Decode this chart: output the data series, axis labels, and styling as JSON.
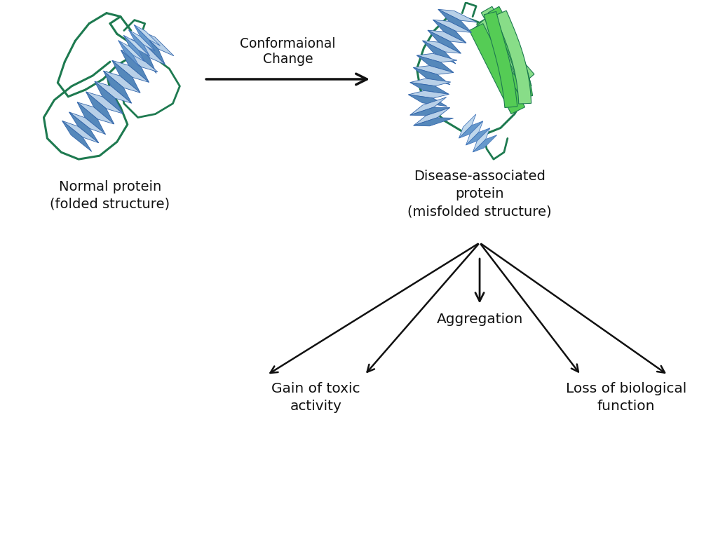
{
  "bg_color": "#ffffff",
  "text_color": "#111111",
  "protein_green": "#1e7a50",
  "beta_green": "#55cc55",
  "beta_green2": "#88dd88",
  "helix_blue1": "#6699cc",
  "helix_blue2": "#aabbdd",
  "helix_blue3": "#4477bb",
  "arrow_color": "#111111",
  "conformational_label": "Conformaional\nChange",
  "normal_label": "Normal protein\n(folded structure)",
  "disease_label": "Disease-associated\nprotein\n(misfolded structure)",
  "aggregation_label": "Aggregation",
  "toxic_label": "Gain of toxic\nactivity",
  "loss_label": "Loss of biological\nfunction",
  "figsize": [
    10.24,
    7.66
  ],
  "dpi": 100
}
